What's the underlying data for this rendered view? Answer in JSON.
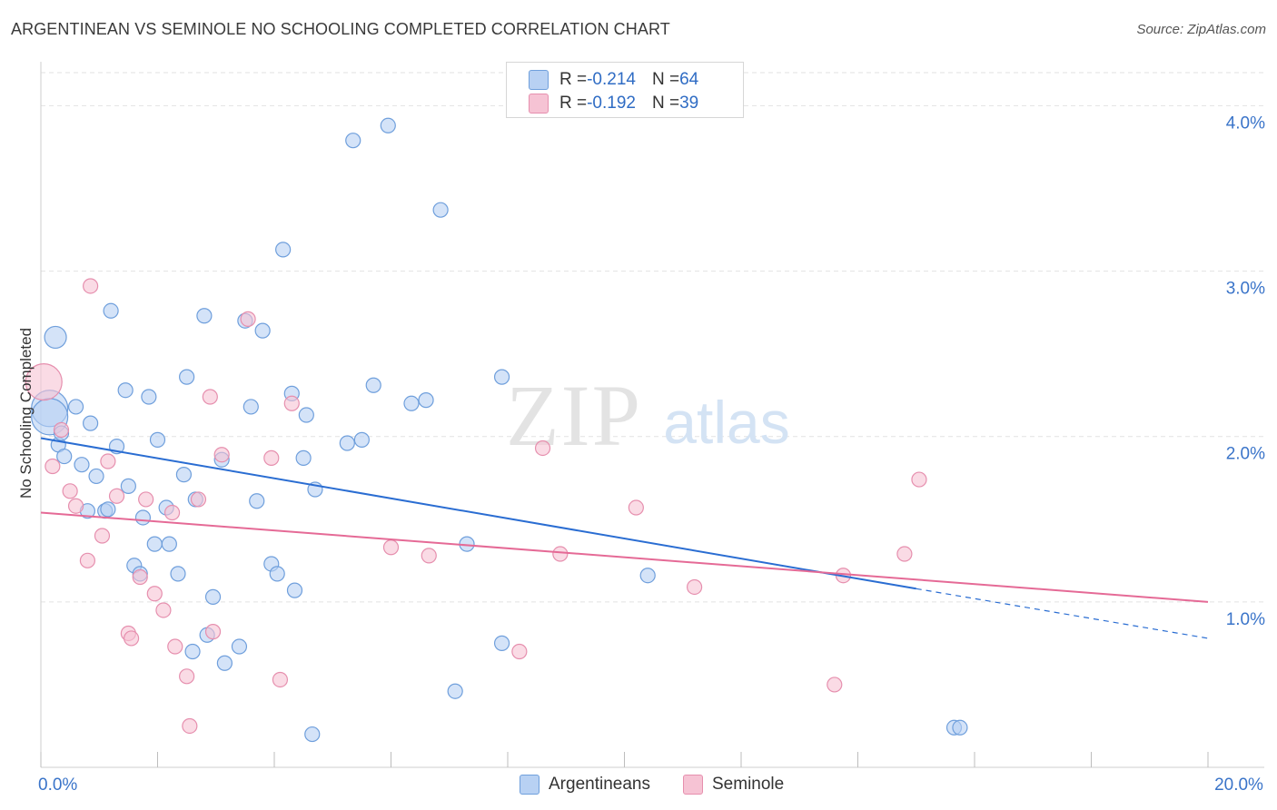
{
  "title": "ARGENTINEAN VS SEMINOLE NO SCHOOLING COMPLETED CORRELATION CHART",
  "source": "Source: ZipAtlas.com",
  "watermark": {
    "zip": "ZIP",
    "atlas": "atlas"
  },
  "colors": {
    "argentineans_fill": "#b8d1f3",
    "argentineans_stroke": "#6f9fdc",
    "argentineans_line": "#2a6dd2",
    "seminole_fill": "#f6c3d4",
    "seminole_stroke": "#e68fae",
    "seminole_line": "#e56a96",
    "axis_label": "#3a74c9",
    "grid": "#e2e2e2"
  },
  "legend": {
    "rows": [
      {
        "r_label": "R = ",
        "r_value": "-0.214",
        "n_label": "N = ",
        "n_value": "64"
      },
      {
        "r_label": "R = ",
        "r_value": "-0.192",
        "n_label": "N = ",
        "n_value": "39"
      }
    ]
  },
  "bottom_legend": {
    "argentineans": "Argentineans",
    "seminole": "Seminole"
  },
  "chart_data": {
    "type": "scatter",
    "xlabel": "",
    "ylabel": "No Schooling Completed",
    "xlim": [
      0,
      20
    ],
    "ylim": [
      0,
      4.2
    ],
    "x_tick_labels": [
      {
        "x": 0,
        "label": "0.0%"
      },
      {
        "x": 20,
        "label": "20.0%"
      }
    ],
    "y_tick_labels": [
      {
        "y": 1,
        "label": "1.0%"
      },
      {
        "y": 2,
        "label": "2.0%"
      },
      {
        "y": 3,
        "label": "3.0%"
      },
      {
        "y": 4,
        "label": "4.0%"
      }
    ],
    "series": [
      {
        "name": "Argentineans",
        "r": -0.214,
        "n": 64,
        "trend": {
          "x0": 0,
          "y0": 1.99,
          "x1": 15.0,
          "y1": 1.08,
          "dash_to_x": 20,
          "dash_to_y": 0.78
        },
        "points": [
          [
            0.15,
            2.17,
            "l"
          ],
          [
            0.15,
            2.12,
            "l"
          ],
          [
            0.25,
            2.6,
            "m"
          ],
          [
            0.3,
            1.95,
            "s"
          ],
          [
            0.35,
            2.02,
            "s"
          ],
          [
            0.4,
            1.88,
            "s"
          ],
          [
            0.6,
            2.18,
            "s"
          ],
          [
            0.7,
            1.83,
            "s"
          ],
          [
            0.8,
            1.55,
            "s"
          ],
          [
            0.85,
            2.08,
            "s"
          ],
          [
            0.95,
            1.76,
            "s"
          ],
          [
            1.1,
            1.55,
            "s"
          ],
          [
            1.15,
            1.56,
            "s"
          ],
          [
            1.2,
            2.76,
            "s"
          ],
          [
            1.3,
            1.94,
            "s"
          ],
          [
            1.45,
            2.28,
            "s"
          ],
          [
            1.5,
            1.7,
            "s"
          ],
          [
            1.6,
            1.22,
            "s"
          ],
          [
            1.7,
            1.17,
            "s"
          ],
          [
            1.75,
            1.51,
            "s"
          ],
          [
            1.85,
            2.24,
            "s"
          ],
          [
            1.95,
            1.35,
            "s"
          ],
          [
            2.0,
            1.98,
            "s"
          ],
          [
            2.15,
            1.57,
            "s"
          ],
          [
            2.2,
            1.35,
            "s"
          ],
          [
            2.35,
            1.17,
            "s"
          ],
          [
            2.45,
            1.77,
            "s"
          ],
          [
            2.5,
            2.36,
            "s"
          ],
          [
            2.6,
            0.7,
            "s"
          ],
          [
            2.65,
            1.62,
            "s"
          ],
          [
            2.8,
            2.73,
            "s"
          ],
          [
            2.85,
            0.8,
            "s"
          ],
          [
            2.95,
            1.03,
            "s"
          ],
          [
            3.1,
            1.86,
            "s"
          ],
          [
            3.15,
            0.63,
            "s"
          ],
          [
            3.4,
            0.73,
            "s"
          ],
          [
            3.5,
            2.7,
            "s"
          ],
          [
            3.6,
            2.18,
            "s"
          ],
          [
            3.7,
            1.61,
            "s"
          ],
          [
            3.8,
            2.64,
            "s"
          ],
          [
            3.95,
            1.23,
            "s"
          ],
          [
            4.05,
            1.17,
            "s"
          ],
          [
            4.15,
            3.13,
            "s"
          ],
          [
            4.3,
            2.26,
            "s"
          ],
          [
            4.35,
            1.07,
            "s"
          ],
          [
            4.5,
            1.87,
            "s"
          ],
          [
            4.55,
            2.13,
            "s"
          ],
          [
            4.65,
            0.2,
            "s"
          ],
          [
            4.7,
            1.68,
            "s"
          ],
          [
            5.25,
            1.96,
            "s"
          ],
          [
            5.35,
            3.79,
            "s"
          ],
          [
            5.5,
            1.98,
            "s"
          ],
          [
            5.7,
            2.31,
            "s"
          ],
          [
            5.95,
            3.88,
            "s"
          ],
          [
            6.35,
            2.2,
            "s"
          ],
          [
            6.6,
            2.22,
            "s"
          ],
          [
            6.85,
            3.37,
            "s"
          ],
          [
            7.1,
            0.46,
            "s"
          ],
          [
            7.3,
            1.35,
            "s"
          ],
          [
            7.9,
            2.36,
            "s"
          ],
          [
            7.9,
            0.75,
            "s"
          ],
          [
            10.4,
            1.16,
            "s"
          ],
          [
            15.65,
            0.24,
            "s"
          ],
          [
            15.75,
            0.24,
            "s"
          ]
        ]
      },
      {
        "name": "Seminole",
        "r": -0.192,
        "n": 39,
        "trend": {
          "x0": 0,
          "y0": 1.54,
          "x1": 20,
          "y1": 1.0
        },
        "points": [
          [
            0.05,
            2.33,
            "l"
          ],
          [
            0.2,
            1.82,
            "s"
          ],
          [
            0.35,
            2.04,
            "s"
          ],
          [
            0.5,
            1.67,
            "s"
          ],
          [
            0.6,
            1.58,
            "s"
          ],
          [
            0.8,
            1.25,
            "s"
          ],
          [
            0.85,
            2.91,
            "s"
          ],
          [
            1.05,
            1.4,
            "s"
          ],
          [
            1.15,
            1.85,
            "s"
          ],
          [
            1.3,
            1.64,
            "s"
          ],
          [
            1.5,
            0.81,
            "s"
          ],
          [
            1.55,
            0.78,
            "s"
          ],
          [
            1.7,
            1.15,
            "s"
          ],
          [
            1.8,
            1.62,
            "s"
          ],
          [
            1.95,
            1.05,
            "s"
          ],
          [
            2.1,
            0.95,
            "s"
          ],
          [
            2.25,
            1.54,
            "s"
          ],
          [
            2.3,
            0.73,
            "s"
          ],
          [
            2.5,
            0.55,
            "s"
          ],
          [
            2.55,
            0.25,
            "s"
          ],
          [
            2.7,
            1.62,
            "s"
          ],
          [
            2.9,
            2.24,
            "s"
          ],
          [
            2.95,
            0.82,
            "s"
          ],
          [
            3.1,
            1.89,
            "s"
          ],
          [
            3.55,
            2.71,
            "s"
          ],
          [
            3.95,
            1.87,
            "s"
          ],
          [
            4.3,
            2.2,
            "s"
          ],
          [
            4.1,
            0.53,
            "s"
          ],
          [
            6.0,
            1.33,
            "s"
          ],
          [
            6.65,
            1.28,
            "s"
          ],
          [
            8.2,
            0.7,
            "s"
          ],
          [
            8.6,
            1.93,
            "s"
          ],
          [
            8.9,
            1.29,
            "s"
          ],
          [
            10.2,
            1.57,
            "s"
          ],
          [
            11.2,
            1.09,
            "s"
          ],
          [
            13.6,
            0.5,
            "s"
          ],
          [
            13.75,
            1.16,
            "s"
          ],
          [
            14.8,
            1.29,
            "s"
          ],
          [
            15.05,
            1.74,
            "s"
          ]
        ]
      }
    ]
  }
}
